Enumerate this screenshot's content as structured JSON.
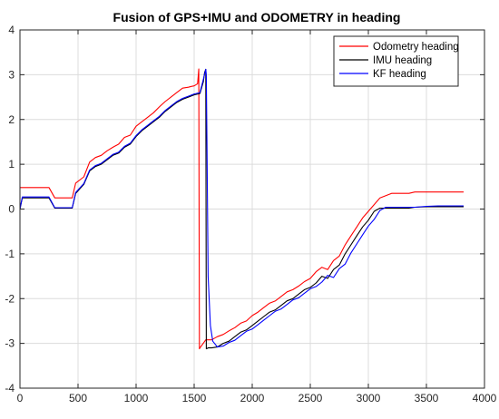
{
  "chart_data": {
    "type": "line",
    "title": "Fusion of GPS+IMU and ODOMETRY in heading",
    "xlabel": "",
    "ylabel": "",
    "xlim": [
      0,
      4000
    ],
    "ylim": [
      -4,
      4
    ],
    "x_ticks": [
      0,
      500,
      1000,
      1500,
      2000,
      2500,
      3000,
      3500,
      4000
    ],
    "y_ticks": [
      -4,
      -3,
      -2,
      -1,
      0,
      1,
      2,
      3,
      4
    ],
    "grid": true,
    "legend_position": "top-right",
    "series": [
      {
        "name": "Odometry heading",
        "color": "#ff0000",
        "x": [
          0,
          20,
          250,
          300,
          450,
          480,
          550,
          600,
          650,
          700,
          750,
          800,
          850,
          900,
          950,
          1000,
          1050,
          1100,
          1150,
          1200,
          1250,
          1300,
          1350,
          1400,
          1450,
          1480,
          1500,
          1530,
          1540,
          1545,
          1550,
          1600,
          1650,
          1700,
          1750,
          1800,
          1850,
          1900,
          1950,
          2000,
          2050,
          2100,
          2150,
          2200,
          2250,
          2300,
          2350,
          2400,
          2450,
          2500,
          2550,
          2600,
          2650,
          2700,
          2750,
          2800,
          2850,
          2900,
          2950,
          3000,
          3050,
          3100,
          3150,
          3200,
          3250,
          3300,
          3350,
          3400,
          3500,
          3600,
          3700,
          3820
        ],
        "y": [
          0.48,
          0.48,
          0.48,
          0.25,
          0.25,
          0.58,
          0.72,
          1.05,
          1.15,
          1.2,
          1.3,
          1.38,
          1.45,
          1.6,
          1.65,
          1.85,
          1.95,
          2.05,
          2.15,
          2.28,
          2.4,
          2.5,
          2.6,
          2.7,
          2.72,
          2.74,
          2.75,
          2.8,
          3.13,
          -3.12,
          -3.1,
          -2.92,
          -2.92,
          -2.85,
          -2.8,
          -2.72,
          -2.65,
          -2.55,
          -2.5,
          -2.38,
          -2.3,
          -2.2,
          -2.1,
          -2.05,
          -1.95,
          -1.85,
          -1.8,
          -1.72,
          -1.62,
          -1.55,
          -1.4,
          -1.3,
          -1.35,
          -1.15,
          -1.05,
          -0.8,
          -0.6,
          -0.4,
          -0.2,
          -0.05,
          0.1,
          0.25,
          0.3,
          0.35,
          0.35,
          0.35,
          0.35,
          0.38,
          0.38,
          0.38,
          0.38,
          0.38
        ]
      },
      {
        "name": "IMU heading",
        "color": "#000000",
        "x": [
          0,
          20,
          50,
          250,
          300,
          450,
          480,
          550,
          600,
          650,
          700,
          750,
          800,
          850,
          900,
          950,
          1000,
          1050,
          1100,
          1150,
          1200,
          1250,
          1300,
          1350,
          1400,
          1450,
          1500,
          1550,
          1580,
          1590,
          1600,
          1605,
          1620,
          1650,
          1700,
          1750,
          1800,
          1850,
          1900,
          1950,
          2000,
          2050,
          2100,
          2150,
          2200,
          2250,
          2300,
          2350,
          2400,
          2450,
          2500,
          2550,
          2600,
          2650,
          2700,
          2750,
          2800,
          2850,
          2900,
          2950,
          3000,
          3050,
          3100,
          3150,
          3200,
          3250,
          3300,
          3350,
          3400,
          3500,
          3600,
          3700,
          3820
        ],
        "y": [
          0.0,
          0.25,
          0.25,
          0.25,
          0.02,
          0.02,
          0.35,
          0.55,
          0.85,
          0.95,
          1.0,
          1.1,
          1.2,
          1.25,
          1.38,
          1.45,
          1.62,
          1.75,
          1.85,
          1.95,
          2.05,
          2.18,
          2.28,
          2.38,
          2.45,
          2.5,
          2.55,
          2.58,
          2.85,
          3.05,
          3.12,
          -3.12,
          -3.1,
          -3.1,
          -3.08,
          -3.0,
          -2.95,
          -2.85,
          -2.75,
          -2.7,
          -2.6,
          -2.5,
          -2.4,
          -2.3,
          -2.25,
          -2.15,
          -2.05,
          -2.0,
          -1.9,
          -1.8,
          -1.75,
          -1.65,
          -1.5,
          -1.55,
          -1.35,
          -1.25,
          -1.0,
          -0.8,
          -0.6,
          -0.4,
          -0.25,
          -0.05,
          0.02,
          0.02,
          0.02,
          0.02,
          0.02,
          0.02,
          0.04,
          0.05,
          0.05,
          0.05,
          0.05
        ]
      },
      {
        "name": "KF heading",
        "color": "#0000ff",
        "x": [
          0,
          20,
          50,
          250,
          300,
          450,
          480,
          550,
          600,
          650,
          700,
          750,
          800,
          850,
          900,
          950,
          1000,
          1050,
          1100,
          1150,
          1200,
          1250,
          1300,
          1350,
          1400,
          1450,
          1500,
          1550,
          1580,
          1600,
          1605,
          1610,
          1620,
          1640,
          1660,
          1700,
          1750,
          1800,
          1850,
          1900,
          1950,
          2000,
          2050,
          2100,
          2150,
          2200,
          2250,
          2300,
          2350,
          2400,
          2450,
          2500,
          2550,
          2600,
          2650,
          2700,
          2750,
          2800,
          2850,
          2900,
          2950,
          3000,
          3050,
          3100,
          3150,
          3200,
          3250,
          3300,
          3350,
          3400,
          3500,
          3600,
          3700,
          3820
        ],
        "y": [
          0.0,
          0.27,
          0.27,
          0.27,
          0.03,
          0.03,
          0.37,
          0.57,
          0.87,
          0.97,
          1.02,
          1.12,
          1.22,
          1.27,
          1.4,
          1.47,
          1.64,
          1.77,
          1.87,
          1.97,
          2.07,
          2.2,
          2.3,
          2.4,
          2.47,
          2.52,
          2.57,
          2.6,
          2.9,
          3.12,
          3.0,
          1.5,
          -1.5,
          -2.6,
          -2.95,
          -3.08,
          -3.06,
          -2.98,
          -2.93,
          -2.83,
          -2.73,
          -2.68,
          -2.58,
          -2.48,
          -2.38,
          -2.28,
          -2.23,
          -2.13,
          -2.03,
          -1.98,
          -1.88,
          -1.78,
          -1.73,
          -1.63,
          -1.48,
          -1.53,
          -1.33,
          -1.23,
          -0.98,
          -0.78,
          -0.58,
          -0.38,
          -0.23,
          -0.03,
          0.04,
          0.04,
          0.04,
          0.04,
          0.04,
          0.04,
          0.06,
          0.07,
          0.07,
          0.07
        ]
      }
    ]
  }
}
